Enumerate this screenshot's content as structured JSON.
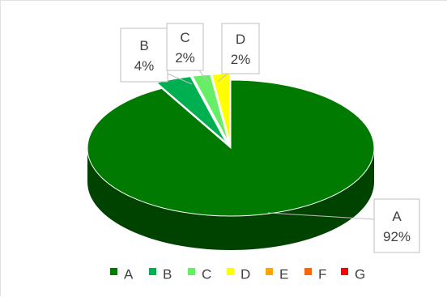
{
  "chart_data": {
    "type": "pie",
    "style": "3d-exploded",
    "legend_position": "bottom",
    "categories": [
      "A",
      "B",
      "C",
      "D",
      "E",
      "F",
      "G"
    ],
    "values": [
      92,
      4,
      2,
      2,
      0,
      0,
      0
    ],
    "value_labels": [
      "92%",
      "4%",
      "2%",
      "2%",
      "",
      "",
      ""
    ],
    "colors": [
      "#007a00",
      "#00b050",
      "#66ee66",
      "#ffff00",
      "#ffa500",
      "#ff6600",
      "#ff0000"
    ],
    "labelled": [
      "A",
      "B",
      "C",
      "D"
    ]
  }
}
